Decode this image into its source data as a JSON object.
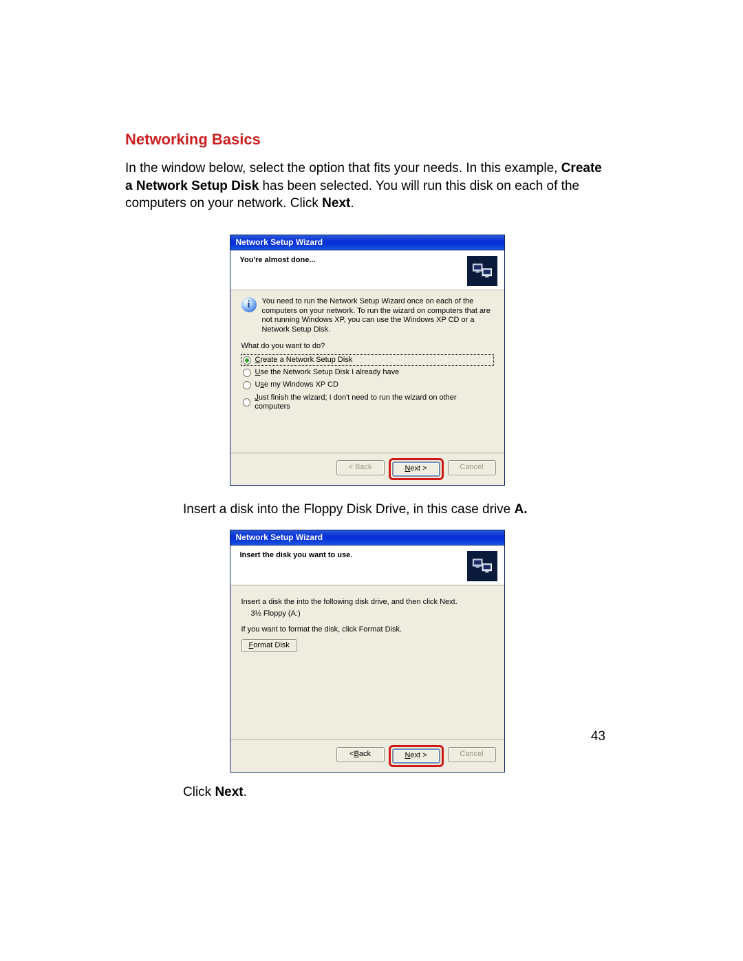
{
  "doc": {
    "heading": "Networking Basics",
    "intro_html": "In the window below, select the option that fits your needs. In this example, <b>Create a Network Setup Disk</b> has been selected.  You will run this disk on each of the computers on your network. Click <b>Next</b>.",
    "intermission_html": "Insert a disk into the Floppy Disk Drive, in this case drive <b>A.</b>",
    "final_html": "Click <b>Next</b>.",
    "page_number": "43"
  },
  "colors": {
    "heading": "#cc2020",
    "highlight_border": "#d01818",
    "titlebar_gradient_top": "#2a5bd7",
    "titlebar_gradient_bottom": "#0831d9",
    "window_bg": "#efece0",
    "header_icon_bg": "#0a1a3a"
  },
  "wizard1": {
    "title": "Network Setup Wizard",
    "header": "You're almost done...",
    "info": "You need to run the Network Setup Wizard once on each of the computers on your network. To run the wizard on computers that are not running Windows XP, you can use the Windows XP CD or a Network Setup Disk.",
    "prompt": "What do you want to do?",
    "options": [
      {
        "label_html": "<span class='ul'>C</span>reate a Network Setup Disk",
        "selected": true
      },
      {
        "label_html": "<span class='ul'>U</span>se the Network Setup Disk I already have",
        "selected": false
      },
      {
        "label_html": "U<span class='ul'>s</span>e my Windows XP CD",
        "selected": false
      },
      {
        "label_html": "<span class='ul'>J</span>ust finish the wizard; I don't need to run the wizard on other computers",
        "selected": false
      }
    ],
    "buttons": {
      "back": "< Back",
      "next_html": "<span class='ul'>N</span>ext >",
      "cancel": "Cancel",
      "back_enabled": false,
      "cancel_enabled": false
    }
  },
  "wizard2": {
    "title": "Network Setup Wizard",
    "header": "Insert the disk you want to use.",
    "line1": "Insert a disk the into the following disk drive, and then click Next.",
    "drive": "3½ Floppy (A:)",
    "line2": "If you want to format the disk, click Format Disk.",
    "format_btn_html": "<span class='ul'>F</span>ormat Disk",
    "buttons": {
      "back_html": "< <span class='ul'>B</span>ack",
      "next_html": "<span class='ul'>N</span>ext >",
      "cancel": "Cancel",
      "back_enabled": true,
      "cancel_enabled": false
    }
  }
}
